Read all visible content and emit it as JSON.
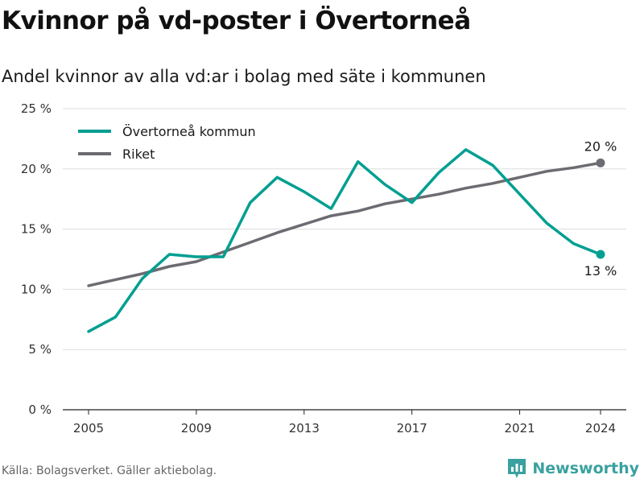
{
  "title": "Kvinnor på vd-poster i Övertorneå",
  "subtitle": "Andel kvinnor av alla vd:ar i bolag med säte i kommunen",
  "source": "Källa: Bolagsverket. Gäller aktiebolag.",
  "brand": "Newsworthy",
  "colors": {
    "overtornea": "#009f91",
    "riket": "#6d6b72",
    "grid": "#dddddd",
    "brand": "#3aa1a0"
  },
  "chart_data": {
    "type": "line",
    "title": "Kvinnor på vd-poster i Övertorneå",
    "subtitle": "Andel kvinnor av alla vd:ar i bolag med säte i kommunen",
    "xlabel": "",
    "ylabel": "",
    "x": [
      2005,
      2006,
      2007,
      2008,
      2009,
      2010,
      2011,
      2012,
      2013,
      2014,
      2015,
      2016,
      2017,
      2018,
      2019,
      2020,
      2021,
      2022,
      2023,
      2024
    ],
    "x_ticks": [
      "2005",
      "2009",
      "2013",
      "2017",
      "2021",
      "2024"
    ],
    "y_ticks": [
      "0 %",
      "5 %",
      "10 %",
      "15 %",
      "20 %",
      "25 %"
    ],
    "ylim": [
      0,
      25
    ],
    "grid": true,
    "legend_position": "top-left",
    "series": [
      {
        "name": "Övertorneå kommun",
        "color": "#009f91",
        "values": [
          6.5,
          7.7,
          10.9,
          12.9,
          12.7,
          12.7,
          17.2,
          19.3,
          18.1,
          16.7,
          20.6,
          18.7,
          17.2,
          19.7,
          21.6,
          20.3,
          17.9,
          15.5,
          13.8,
          12.9
        ],
        "end_label": "13 %"
      },
      {
        "name": "Riket",
        "color": "#6d6b72",
        "values": [
          10.3,
          10.8,
          11.3,
          11.9,
          12.3,
          13.1,
          13.9,
          14.7,
          15.4,
          16.1,
          16.5,
          17.1,
          17.5,
          17.9,
          18.4,
          18.8,
          19.3,
          19.8,
          20.1,
          20.5
        ],
        "end_label": "20 %"
      }
    ]
  }
}
